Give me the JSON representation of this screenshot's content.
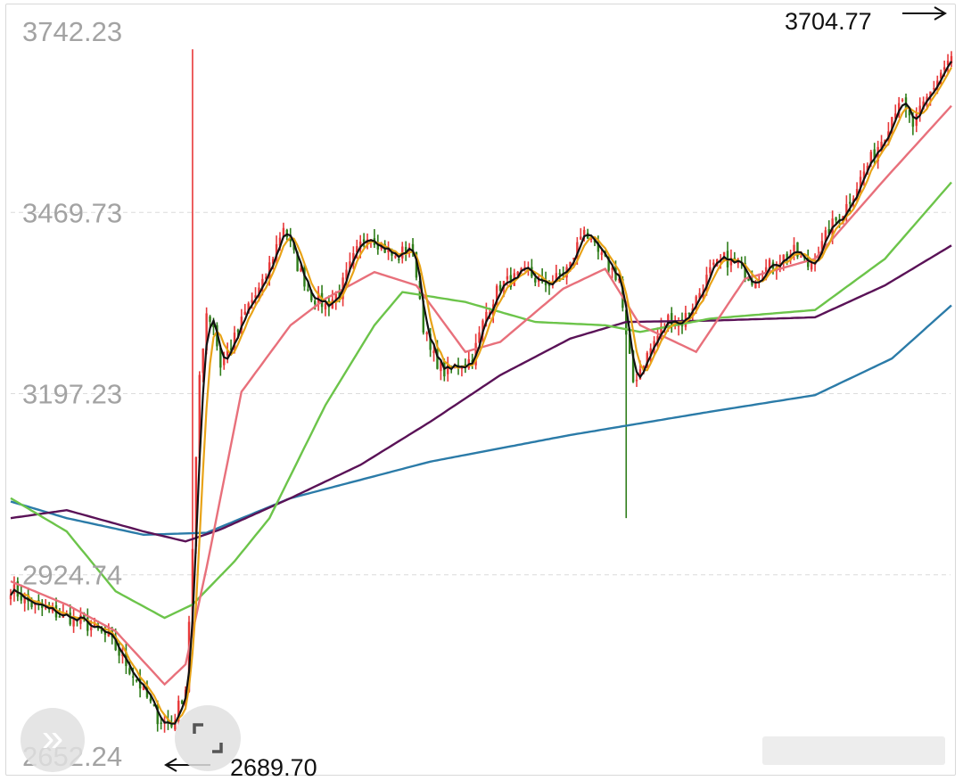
{
  "chart_data": {
    "type": "candlestick",
    "title": "",
    "xlabel": "",
    "ylabel": "",
    "ylim": [
      2652.24,
      3742.23
    ],
    "y_tick_labels": [
      "3742.23",
      "3469.73",
      "3197.23",
      "2924.74",
      "2652.24"
    ],
    "y_ticks": [
      3742.23,
      3469.73,
      3197.23,
      2924.74,
      2652.24
    ],
    "grid": "horizontal dashed",
    "annotations": {
      "high_label": "3704.77",
      "high_value": 3704.77,
      "low_label": "2689.70",
      "low_value": 2689.7
    },
    "colors": {
      "up": "#e8393a",
      "down": "#2f7d1a",
      "ma_black": "#111111",
      "ma_orange": "#e8a317",
      "ma_pink": "#e8707b",
      "ma_green": "#6cc44a",
      "ma_purple": "#5a1257",
      "ma_blue": "#2b7ba8"
    },
    "close_anchors": [
      [
        0,
        2905
      ],
      [
        6,
        2880
      ],
      [
        12,
        2868
      ],
      [
        20,
        2855
      ],
      [
        28,
        2830
      ],
      [
        36,
        2768
      ],
      [
        42,
        2710
      ],
      [
        46,
        2698
      ],
      [
        50,
        2755
      ],
      [
        52,
        2960
      ],
      [
        54,
        3225
      ],
      [
        56,
        3320
      ],
      [
        58,
        3300
      ],
      [
        60,
        3240
      ],
      [
        64,
        3280
      ],
      [
        68,
        3330
      ],
      [
        72,
        3360
      ],
      [
        76,
        3420
      ],
      [
        78,
        3450
      ],
      [
        82,
        3390
      ],
      [
        86,
        3345
      ],
      [
        90,
        3330
      ],
      [
        94,
        3350
      ],
      [
        98,
        3400
      ],
      [
        102,
        3440
      ],
      [
        106,
        3420
      ],
      [
        110,
        3400
      ],
      [
        114,
        3420
      ],
      [
        116,
        3380
      ],
      [
        118,
        3300
      ],
      [
        120,
        3260
      ],
      [
        122,
        3245
      ],
      [
        124,
        3230
      ],
      [
        128,
        3240
      ],
      [
        132,
        3250
      ],
      [
        136,
        3320
      ],
      [
        140,
        3360
      ],
      [
        144,
        3370
      ],
      [
        148,
        3380
      ],
      [
        152,
        3360
      ],
      [
        156,
        3370
      ],
      [
        160,
        3390
      ],
      [
        164,
        3450
      ],
      [
        166,
        3420
      ],
      [
        170,
        3395
      ],
      [
        174,
        3370
      ],
      [
        176,
        3280
      ],
      [
        178,
        3215
      ],
      [
        180,
        3235
      ],
      [
        184,
        3275
      ],
      [
        188,
        3310
      ],
      [
        192,
        3305
      ],
      [
        196,
        3340
      ],
      [
        200,
        3380
      ],
      [
        204,
        3400
      ],
      [
        208,
        3390
      ],
      [
        212,
        3370
      ],
      [
        216,
        3385
      ],
      [
        220,
        3400
      ],
      [
        224,
        3410
      ],
      [
        228,
        3390
      ],
      [
        232,
        3420
      ],
      [
        234,
        3445
      ],
      [
        238,
        3470
      ],
      [
        242,
        3510
      ],
      [
        246,
        3550
      ],
      [
        250,
        3590
      ],
      [
        254,
        3640
      ],
      [
        256,
        3620
      ],
      [
        258,
        3600
      ],
      [
        262,
        3640
      ],
      [
        266,
        3680
      ],
      [
        269,
        3704.77
      ]
    ],
    "moving_averages": [
      {
        "color_key": "ma_blue",
        "points": [
          [
            0,
            3035
          ],
          [
            16,
            3010
          ],
          [
            38,
            2985
          ],
          [
            56,
            2988
          ],
          [
            80,
            3040
          ],
          [
            120,
            3095
          ],
          [
            160,
            3135
          ],
          [
            200,
            3170
          ],
          [
            230,
            3195
          ],
          [
            252,
            3250
          ],
          [
            269,
            3330
          ]
        ]
      },
      {
        "color_key": "ma_purple",
        "points": [
          [
            0,
            3010
          ],
          [
            16,
            3022
          ],
          [
            38,
            2990
          ],
          [
            50,
            2975
          ],
          [
            60,
            2993
          ],
          [
            80,
            3040
          ],
          [
            100,
            3090
          ],
          [
            120,
            3155
          ],
          [
            140,
            3225
          ],
          [
            160,
            3280
          ],
          [
            176,
            3305
          ],
          [
            200,
            3307
          ],
          [
            230,
            3312
          ],
          [
            250,
            3360
          ],
          [
            269,
            3420
          ]
        ]
      },
      {
        "color_key": "ma_green",
        "points": [
          [
            0,
            3040
          ],
          [
            16,
            2990
          ],
          [
            30,
            2900
          ],
          [
            44,
            2860
          ],
          [
            52,
            2880
          ],
          [
            64,
            2945
          ],
          [
            74,
            3010
          ],
          [
            90,
            3180
          ],
          [
            104,
            3300
          ],
          [
            112,
            3350
          ],
          [
            130,
            3335
          ],
          [
            150,
            3305
          ],
          [
            170,
            3300
          ],
          [
            180,
            3290
          ],
          [
            200,
            3310
          ],
          [
            230,
            3323
          ],
          [
            250,
            3400
          ],
          [
            269,
            3515
          ]
        ]
      },
      {
        "color_key": "ma_pink",
        "points": [
          [
            0,
            2915
          ],
          [
            16,
            2880
          ],
          [
            30,
            2840
          ],
          [
            44,
            2760
          ],
          [
            50,
            2790
          ],
          [
            56,
            2935
          ],
          [
            66,
            3200
          ],
          [
            80,
            3300
          ],
          [
            90,
            3340
          ],
          [
            104,
            3380
          ],
          [
            116,
            3360
          ],
          [
            130,
            3260
          ],
          [
            140,
            3275
          ],
          [
            158,
            3355
          ],
          [
            170,
            3385
          ],
          [
            180,
            3300
          ],
          [
            196,
            3260
          ],
          [
            210,
            3370
          ],
          [
            230,
            3400
          ],
          [
            250,
            3520
          ],
          [
            269,
            3630
          ]
        ]
      }
    ]
  },
  "controls": {
    "expand_button_glyph": "»"
  }
}
